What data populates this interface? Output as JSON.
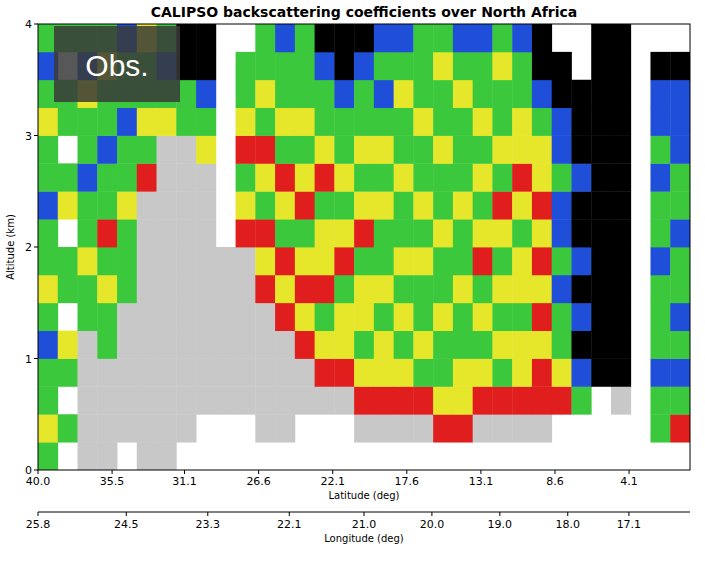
{
  "chart_data": {
    "type": "heatmap",
    "title": "CALIPSO backscattering coefficients over North Africa",
    "annotation": "Obs.",
    "xlabel": "Latitude (deg)",
    "x2label": "Longitude (deg)",
    "ylabel": "Altitude (km)",
    "xlim": [
      40.0,
      0.4
    ],
    "xticks": [
      {
        "value": 40,
        "label": "40.0"
      },
      35.5,
      31.1,
      26.6,
      22.1,
      17.6,
      13.1,
      8.6,
      4.1
    ],
    "x2lim": [
      25.8,
      16.2
    ],
    "x2ticks": [
      25.8,
      24.5,
      23.3,
      22.1,
      {
        "value": 21,
        "label": "21.0"
      },
      {
        "value": 20,
        "label": "20.0"
      },
      {
        "value": 19,
        "label": "19.0"
      },
      {
        "value": 18,
        "label": "18.0"
      },
      17.1
    ],
    "ylim": [
      0,
      4
    ],
    "yticks": [
      0,
      1,
      2,
      3,
      4
    ],
    "x": [
      39.4,
      38.2,
      37.0,
      35.8,
      34.6,
      33.4,
      32.2,
      31.0,
      29.8,
      28.6,
      27.4,
      26.2,
      25.0,
      23.8,
      22.6,
      21.4,
      20.2,
      19.0,
      17.8,
      16.6,
      15.4,
      14.2,
      13.0,
      11.8,
      10.6,
      9.4,
      8.2,
      7.0,
      5.8,
      4.6,
      3.4,
      2.2,
      1.0
    ],
    "y": [
      0.125,
      0.375,
      0.625,
      0.875,
      1.125,
      1.375,
      1.625,
      1.875,
      2.125,
      2.375,
      2.625,
      2.875,
      3.125,
      3.375,
      3.625,
      3.875
    ],
    "colors": [
      "#000000",
      "#1f4fd8",
      "#3cc83c",
      "#e6e62a",
      "#e01e1e",
      "#c8c8c8"
    ],
    "cells": [
      [
        2,
        3,
        2,
        2,
        1,
        2,
        3,
        2,
        2,
        1,
        2,
        2,
        3,
        2,
        1,
        2
      ],
      [
        null,
        2,
        null,
        2,
        3,
        null,
        2,
        2,
        null,
        3,
        2,
        null,
        2,
        2,
        null,
        2
      ],
      [
        5,
        5,
        5,
        5,
        5,
        2,
        2,
        3,
        2,
        2,
        1,
        2,
        2,
        3,
        1,
        2
      ],
      [
        5,
        5,
        5,
        5,
        2,
        2,
        3,
        2,
        4,
        2,
        2,
        1,
        2,
        2,
        3,
        2
      ],
      [
        null,
        5,
        5,
        5,
        5,
        5,
        2,
        2,
        2,
        3,
        2,
        2,
        1,
        2,
        2,
        1
      ],
      [
        5,
        5,
        5,
        5,
        5,
        5,
        5,
        5,
        5,
        5,
        4,
        2,
        3,
        2,
        2,
        3
      ],
      [
        5,
        5,
        5,
        5,
        5,
        5,
        5,
        5,
        5,
        5,
        5,
        5,
        3,
        2,
        1,
        2
      ],
      [
        null,
        5,
        5,
        5,
        5,
        5,
        5,
        5,
        5,
        5,
        5,
        5,
        2,
        2,
        0,
        0
      ],
      [
        null,
        null,
        5,
        5,
        5,
        5,
        5,
        5,
        5,
        5,
        5,
        3,
        2,
        1,
        0,
        0
      ],
      [
        null,
        null,
        5,
        5,
        5,
        5,
        5,
        5,
        null,
        null,
        null,
        null,
        null,
        null,
        null,
        null
      ],
      [
        null,
        null,
        5,
        5,
        5,
        5,
        5,
        5,
        4,
        3,
        2,
        4,
        3,
        2,
        2,
        null
      ],
      [
        null,
        5,
        5,
        5,
        5,
        5,
        4,
        3,
        4,
        2,
        3,
        4,
        2,
        3,
        2,
        2
      ],
      [
        null,
        5,
        5,
        5,
        5,
        4,
        3,
        4,
        2,
        3,
        4,
        2,
        3,
        2,
        2,
        1
      ],
      [
        null,
        null,
        5,
        5,
        4,
        3,
        4,
        3,
        2,
        4,
        3,
        2,
        3,
        2,
        2,
        2
      ],
      [
        null,
        null,
        5,
        4,
        3,
        2,
        4,
        3,
        3,
        2,
        4,
        3,
        2,
        2,
        1,
        0
      ],
      [
        null,
        null,
        5,
        4,
        3,
        3,
        2,
        4,
        3,
        2,
        3,
        2,
        2,
        1,
        0,
        0
      ],
      [
        null,
        5,
        4,
        3,
        2,
        3,
        3,
        2,
        4,
        3,
        2,
        3,
        2,
        2,
        1,
        0
      ],
      [
        null,
        5,
        4,
        3,
        3,
        2,
        3,
        2,
        2,
        3,
        2,
        3,
        2,
        1,
        2,
        1
      ],
      [
        null,
        5,
        4,
        3,
        2,
        3,
        2,
        3,
        2,
        2,
        3,
        2,
        2,
        3,
        2,
        1
      ],
      [
        null,
        5,
        4,
        2,
        3,
        2,
        2,
        3,
        2,
        3,
        2,
        2,
        3,
        2,
        2,
        2
      ],
      [
        null,
        4,
        3,
        2,
        2,
        3,
        2,
        2,
        3,
        2,
        2,
        3,
        2,
        2,
        3,
        2
      ],
      [
        null,
        4,
        3,
        3,
        2,
        2,
        3,
        2,
        2,
        3,
        2,
        2,
        2,
        3,
        2,
        1
      ],
      [
        null,
        5,
        4,
        3,
        2,
        3,
        2,
        4,
        3,
        2,
        3,
        2,
        3,
        2,
        2,
        1
      ],
      [
        null,
        5,
        4,
        2,
        3,
        2,
        3,
        2,
        3,
        4,
        2,
        3,
        2,
        2,
        3,
        2
      ],
      [
        null,
        5,
        4,
        3,
        3,
        2,
        3,
        3,
        2,
        3,
        4,
        3,
        3,
        2,
        2,
        1
      ],
      [
        null,
        5,
        4,
        4,
        3,
        4,
        3,
        4,
        3,
        4,
        3,
        3,
        2,
        1,
        0,
        0
      ],
      [
        null,
        null,
        4,
        3,
        2,
        2,
        1,
        2,
        1,
        1,
        2,
        1,
        1,
        0,
        0,
        null
      ],
      [
        null,
        null,
        2,
        1,
        0,
        1,
        0,
        1,
        0,
        0,
        1,
        0,
        0,
        0,
        null,
        null
      ],
      [
        null,
        null,
        null,
        0,
        0,
        0,
        0,
        0,
        0,
        0,
        0,
        0,
        0,
        0,
        0,
        0
      ],
      [
        null,
        null,
        5,
        0,
        0,
        0,
        0,
        0,
        0,
        0,
        0,
        0,
        0,
        0,
        0,
        0
      ],
      [
        null,
        null,
        null,
        null,
        null,
        null,
        null,
        null,
        null,
        null,
        null,
        null,
        null,
        null,
        null,
        null
      ],
      [
        null,
        2,
        2,
        1,
        2,
        2,
        2,
        1,
        2,
        2,
        1,
        2,
        1,
        1,
        0,
        null
      ],
      [
        null,
        4,
        2,
        1,
        2,
        1,
        2,
        2,
        1,
        2,
        2,
        1,
        1,
        1,
        0,
        null
      ]
    ]
  }
}
